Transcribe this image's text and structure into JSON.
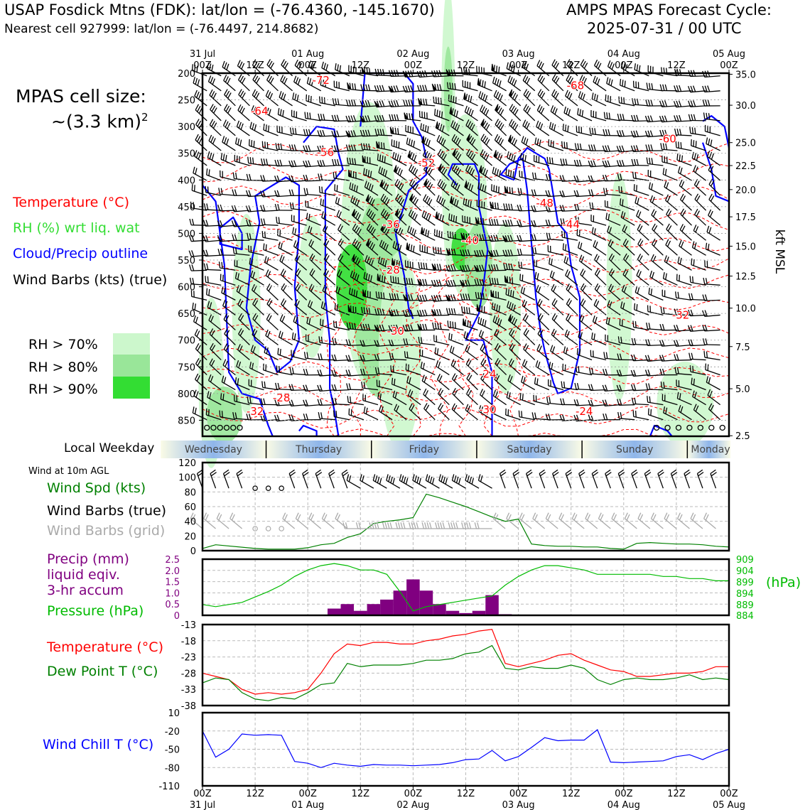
{
  "header": {
    "title_left": "USAP Fosdick Mtns (FDK): lat/lon = (-76.4360, -145.1670)",
    "subtitle_left": "Nearest cell 927999: lat/lon = (-76.4497, 214.8682)",
    "title_right_1": "AMPS MPAS Forecast Cycle:",
    "title_right_2": "2025-07-31 / 00 UTC"
  },
  "sidebar": {
    "cell_size_1": "MPAS cell size:",
    "cell_size_2": "~(3.3 km)",
    "cell_size_sup": "2",
    "legend_temperature": "Temperature (°C)",
    "legend_rh": "RH (%) wrt liq. wat",
    "legend_cloud": "Cloud/Precip outline",
    "legend_wind": "Wind Barbs (kts) (true)",
    "rh_70": "RH > 70%",
    "rh_80": "RH > 80%",
    "rh_90": "RH > 90%",
    "wind_10m": "Wind at 10m AGL",
    "wind_spd": "Wind Spd (kts)",
    "wind_barbs_true": "Wind Barbs (true)",
    "wind_barbs_grid": "Wind Barbs (grid)",
    "precip_1": "Precip (mm)",
    "precip_2": "liquid eqiv.",
    "precip_3": "3-hr accum",
    "pressure": "Pressure (hPa)",
    "temp2": "Temperature (°C)",
    "dewpoint": "Dew Point T (°C)",
    "windchill": "Wind Chill T (°C)",
    "local_weekday": "Local Weekday",
    "kft_label": "kft MSL",
    "hpa_label": "(hPa)"
  },
  "colors": {
    "temp": "#ff0000",
    "rh_text": "#33dd33",
    "cloud": "#0000ff",
    "rh70": "#ccf7cc",
    "rh80": "#99e699",
    "rh90": "#33dd33",
    "wind_spd": "#008000",
    "barb_grid": "#aaaaaa",
    "precip": "#800080",
    "pressure": "#00bb00",
    "windchill": "#0000ff"
  },
  "chart_data": [
    {
      "type": "heatmap",
      "panel": "cross-section",
      "x_ticks_top": [
        {
          "line1": "31 Jul",
          "line2": "00Z"
        },
        {
          "line1": "",
          "line2": "12Z"
        },
        {
          "line1": "01 Aug",
          "line2": "00Z"
        },
        {
          "line1": "",
          "line2": "12Z"
        },
        {
          "line1": "02 Aug",
          "line2": "00Z"
        },
        {
          "line1": "",
          "line2": "12Z"
        },
        {
          "line1": "03 Aug",
          "line2": "00Z"
        },
        {
          "line1": "",
          "line2": "12Z"
        },
        {
          "line1": "04 Aug",
          "line2": "00Z"
        },
        {
          "line1": "",
          "line2": "12Z"
        },
        {
          "line1": "05 Aug",
          "line2": "00Z"
        }
      ],
      "x_hours_range": [
        0,
        120
      ],
      "y_pressure_ticks": [
        "200",
        "250",
        "300",
        "350",
        "400",
        "450",
        "500",
        "550",
        "600",
        "650",
        "700",
        "750",
        "800",
        "850"
      ],
      "y_pressure_range": [
        200,
        880
      ],
      "y_kft": [
        {
          "p": 202,
          "label": "35.0"
        },
        {
          "p": 260,
          "label": "30.0"
        },
        {
          "p": 330,
          "label": "25.0"
        },
        {
          "p": 373,
          "label": "22.5"
        },
        {
          "p": 418,
          "label": "20.0"
        },
        {
          "p": 469,
          "label": "17.5"
        },
        {
          "p": 524,
          "label": "15.0"
        },
        {
          "p": 580,
          "label": "12.5"
        },
        {
          "p": 640,
          "label": "10.0"
        },
        {
          "p": 712,
          "label": "7.5"
        },
        {
          "p": 791,
          "label": "5.0"
        },
        {
          "p": 879,
          "label": "2.5"
        }
      ],
      "temperature_labels": [
        {
          "h": 27,
          "p": 220,
          "text": "-72"
        },
        {
          "h": 13,
          "p": 278,
          "text": "-64"
        },
        {
          "h": 28,
          "p": 355,
          "text": "-56"
        },
        {
          "h": 51,
          "p": 375,
          "text": "-52"
        },
        {
          "h": 43,
          "p": 490,
          "text": "-36"
        },
        {
          "h": 61,
          "p": 520,
          "text": "-40"
        },
        {
          "h": 43,
          "p": 575,
          "text": "-28"
        },
        {
          "h": 85,
          "p": 230,
          "text": "-68"
        },
        {
          "h": 106,
          "p": 330,
          "text": "-60"
        },
        {
          "h": 78,
          "p": 450,
          "text": "-48"
        },
        {
          "h": 84,
          "p": 490,
          "text": "-44"
        },
        {
          "h": 109,
          "p": 660,
          "text": "-32"
        },
        {
          "h": 44,
          "p": 690,
          "text": "-30"
        },
        {
          "h": 65,
          "p": 770,
          "text": "-24"
        },
        {
          "h": 18,
          "p": 815,
          "text": "-28"
        },
        {
          "h": 12,
          "p": 840,
          "text": "-32"
        },
        {
          "h": 65,
          "p": 837,
          "text": "-30"
        },
        {
          "h": 87,
          "p": 840,
          "text": "-24"
        }
      ],
      "weekdays": [
        "Wednesday",
        "Thursday",
        "Friday",
        "Saturday",
        "Sunday",
        "Monday"
      ]
    },
    {
      "type": "line",
      "panel": "wind",
      "series": [
        {
          "name": "Wind Spd (kts)",
          "x": [
            0,
            3,
            12,
            15,
            18,
            21,
            24,
            27,
            30,
            33,
            36,
            39,
            42,
            45,
            48,
            51,
            54,
            57,
            60,
            63,
            66,
            69,
            72,
            75,
            78,
            81,
            84,
            87,
            90,
            93,
            96,
            99,
            102,
            105,
            108,
            111,
            114,
            117,
            120
          ],
          "y": [
            3,
            8,
            3,
            2,
            2,
            2,
            4,
            8,
            10,
            18,
            23,
            37,
            40,
            42,
            45,
            77,
            72,
            66,
            60,
            53,
            46,
            40,
            43,
            9,
            7,
            6,
            6,
            5,
            5,
            3,
            2,
            10,
            11,
            10,
            9,
            9,
            8,
            6,
            5
          ]
        }
      ],
      "ylim": [
        0,
        120
      ],
      "y_ticks": [
        "0",
        "20",
        "40",
        "60",
        "80",
        "100",
        "120"
      ]
    },
    {
      "type": "bar",
      "panel": "precip-pressure",
      "precip_x": [
        30,
        33,
        36,
        39,
        42,
        45,
        48,
        51,
        54,
        57,
        60,
        63,
        66,
        69,
        72
      ],
      "precip_values": [
        0.3,
        0.5,
        0.2,
        0.5,
        0.7,
        1.1,
        1.6,
        1.1,
        0.5,
        0.2,
        0.1,
        0.2,
        0.9,
        0.05,
        0.0
      ],
      "precip_ylim": [
        0,
        2.5
      ],
      "precip_y_ticks": [
        "0",
        "0.5",
        "1.0",
        "1.5",
        "2.0",
        "2.5"
      ],
      "pressure": {
        "x": [
          0,
          3,
          9,
          15,
          18,
          21,
          24,
          27,
          30,
          33,
          36,
          39,
          42,
          45,
          48,
          51,
          54,
          57,
          60,
          63,
          66,
          69,
          72,
          75,
          78,
          81,
          84,
          87,
          90,
          93,
          96,
          99,
          102,
          105,
          108,
          111,
          114,
          117,
          120
        ],
        "y": [
          889,
          888,
          890,
          895,
          898,
          902,
          905,
          907,
          908,
          907,
          905,
          905,
          903,
          895,
          886,
          888,
          889,
          890,
          891,
          892,
          893,
          898,
          902,
          905,
          907,
          907,
          906,
          905,
          903,
          903,
          903,
          903,
          903,
          902,
          902,
          901,
          901,
          900,
          900
        ]
      },
      "pressure_ylim": [
        884,
        910
      ],
      "pressure_y_ticks": [
        "909",
        "904",
        "899",
        "894",
        "889",
        "884"
      ]
    },
    {
      "type": "line",
      "panel": "temperature",
      "series": [
        {
          "name": "Temperature (°C)",
          "x": [
            0,
            3,
            6,
            9,
            12,
            15,
            18,
            21,
            24,
            27,
            30,
            33,
            36,
            39,
            42,
            45,
            48,
            51,
            54,
            57,
            60,
            63,
            66,
            69,
            72,
            75,
            78,
            81,
            84,
            87,
            90,
            93,
            96,
            99,
            102,
            105,
            108,
            111,
            114,
            117,
            120
          ],
          "y": [
            -28,
            -29,
            -30,
            -33,
            -34.5,
            -34,
            -34.5,
            -34,
            -33,
            -28,
            -22,
            -19,
            -19.5,
            -18.5,
            -18.5,
            -19,
            -19,
            -18,
            -17.5,
            -16.5,
            -16,
            -15,
            -14.5,
            -25,
            -26,
            -25,
            -24,
            -22.5,
            -22,
            -24,
            -25.5,
            -27,
            -27.5,
            -29,
            -29,
            -28.5,
            -28,
            -28,
            -27.5,
            -26,
            -26
          ],
          "color": "#ff0000"
        },
        {
          "name": "Dew Point T (°C)",
          "x": [
            0,
            3,
            6,
            9,
            12,
            15,
            18,
            21,
            24,
            27,
            30,
            33,
            36,
            39,
            42,
            45,
            48,
            51,
            54,
            57,
            60,
            63,
            66,
            69,
            72,
            75,
            78,
            81,
            84,
            87,
            90,
            93,
            96,
            99,
            102,
            105,
            108,
            111,
            114,
            117,
            120
          ],
          "y": [
            -31,
            -29.5,
            -30,
            -34,
            -36,
            -36.5,
            -35.5,
            -36,
            -34,
            -31.5,
            -31,
            -25,
            -26,
            -25.5,
            -25.5,
            -25.5,
            -25,
            -24,
            -24,
            -23.5,
            -22,
            -21.5,
            -19.5,
            -26.5,
            -27,
            -26,
            -26.5,
            -26.5,
            -25.5,
            -26.5,
            -30,
            -31.5,
            -30,
            -29.5,
            -30,
            -30,
            -29.5,
            -28.5,
            -30,
            -29.5,
            -30
          ],
          "color": "#008000"
        }
      ],
      "ylim": [
        -38,
        -13
      ],
      "y_ticks": [
        "-13",
        "-18",
        "-23",
        "-28",
        "-33",
        "-38"
      ]
    },
    {
      "type": "line",
      "panel": "windchill",
      "series": [
        {
          "name": "Wind Chill T (°C)",
          "x": [
            0,
            3,
            6,
            9,
            12,
            15,
            18,
            21,
            24,
            27,
            30,
            33,
            36,
            39,
            42,
            45,
            48,
            51,
            54,
            57,
            60,
            63,
            66,
            69,
            72,
            75,
            78,
            81,
            84,
            87,
            90,
            93,
            96,
            99,
            102,
            105,
            108,
            111,
            114,
            117,
            120
          ],
          "y": [
            -20,
            -63,
            -50,
            -25,
            -27,
            -26,
            -27,
            -70,
            -73,
            -80,
            -73,
            -76,
            -78,
            -75,
            -76,
            -76,
            -77,
            -76,
            -75,
            -72,
            -67,
            -66,
            -52,
            -69,
            -62,
            -47,
            -31,
            -36,
            -35,
            -35,
            -18,
            -71,
            -72,
            -71,
            -70,
            -69,
            -62,
            -59,
            -67,
            -57,
            -50
          ],
          "color": "#0000ff"
        }
      ],
      "ylim": [
        -110,
        10
      ],
      "y_ticks": [
        "10",
        "-20",
        "-50",
        "-80",
        "-110"
      ],
      "x_ticks_bottom": [
        {
          "line1": "00Z",
          "line2": "31 Jul"
        },
        {
          "line1": "12Z",
          "line2": ""
        },
        {
          "line1": "00Z",
          "line2": "01 Aug"
        },
        {
          "line1": "12Z",
          "line2": ""
        },
        {
          "line1": "00Z",
          "line2": "02 Aug"
        },
        {
          "line1": "12Z",
          "line2": ""
        },
        {
          "line1": "00Z",
          "line2": "03 Aug"
        },
        {
          "line1": "12Z",
          "line2": ""
        },
        {
          "line1": "00Z",
          "line2": "04 Aug"
        },
        {
          "line1": "12Z",
          "line2": ""
        },
        {
          "line1": "00Z",
          "line2": "05 Aug"
        }
      ]
    }
  ]
}
